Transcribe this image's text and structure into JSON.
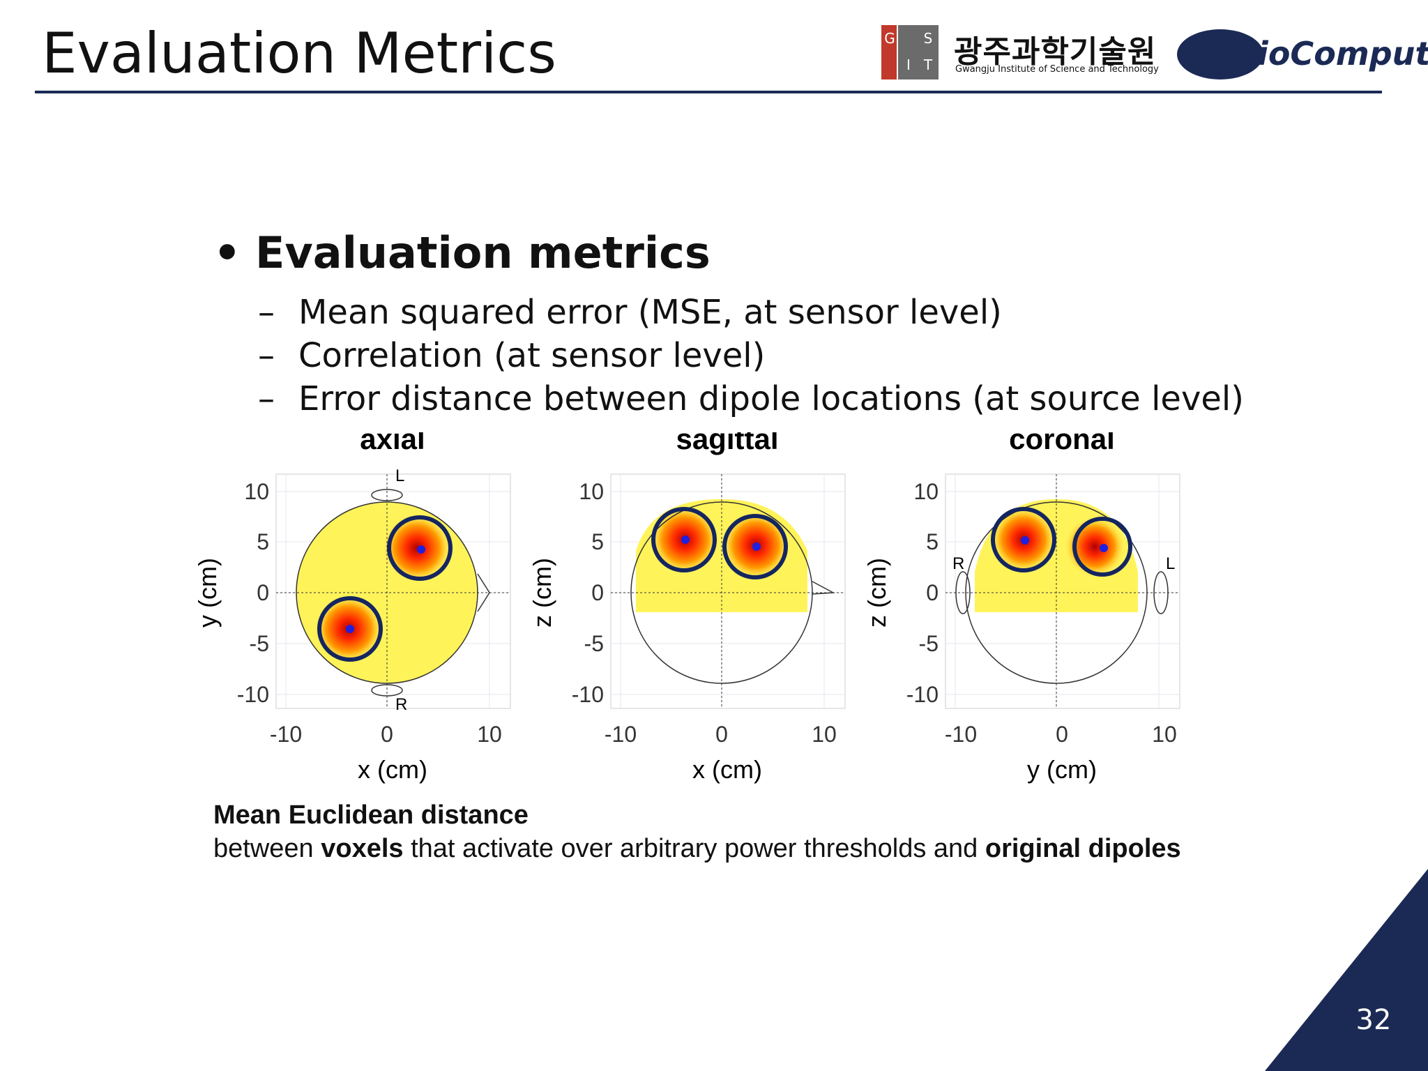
{
  "header": {
    "title": "Evaluation Metrics",
    "gist_letters": [
      "G",
      "I",
      "S",
      "T"
    ],
    "institute_korean": "광주과학기술원",
    "institute_english": "Gwangju Institute of Science and Technology",
    "lab_logo_text": "BioComputing"
  },
  "content": {
    "bullet": "Evaluation metrics",
    "sub_items": [
      "Mean squared error (MSE, at sensor level)",
      "Correlation (at sensor level)",
      "Error distance between dipole locations (at source level)"
    ]
  },
  "figure": {
    "panels": [
      {
        "title": "axial",
        "xlabel": "x (cm)",
        "ylabel": "y (cm)",
        "marker_top": "L",
        "marker_bottom": "R"
      },
      {
        "title": "sagittal",
        "xlabel": "x (cm)",
        "ylabel": "z (cm)"
      },
      {
        "title": "coronal",
        "xlabel": "y (cm)",
        "ylabel": "z (cm)",
        "marker_left": "R",
        "marker_right": "L"
      }
    ],
    "x_ticks": [
      "-10",
      "0",
      "10"
    ],
    "y_ticks": [
      "10",
      "5",
      "0",
      "-5",
      "-10"
    ]
  },
  "caption": {
    "line1": "Mean Euclidean distance",
    "line2_a": "between ",
    "line2_b": "voxels",
    "line2_c": " that activate over arbitrary power thresholds and ",
    "line2_d": "original dipoles"
  },
  "footer": {
    "page_number": "32"
  },
  "colors": {
    "navy": "#1b2a55",
    "gist_red": "#c0392b",
    "gist_gray": "#555555",
    "heat_base": "#fff35a"
  }
}
